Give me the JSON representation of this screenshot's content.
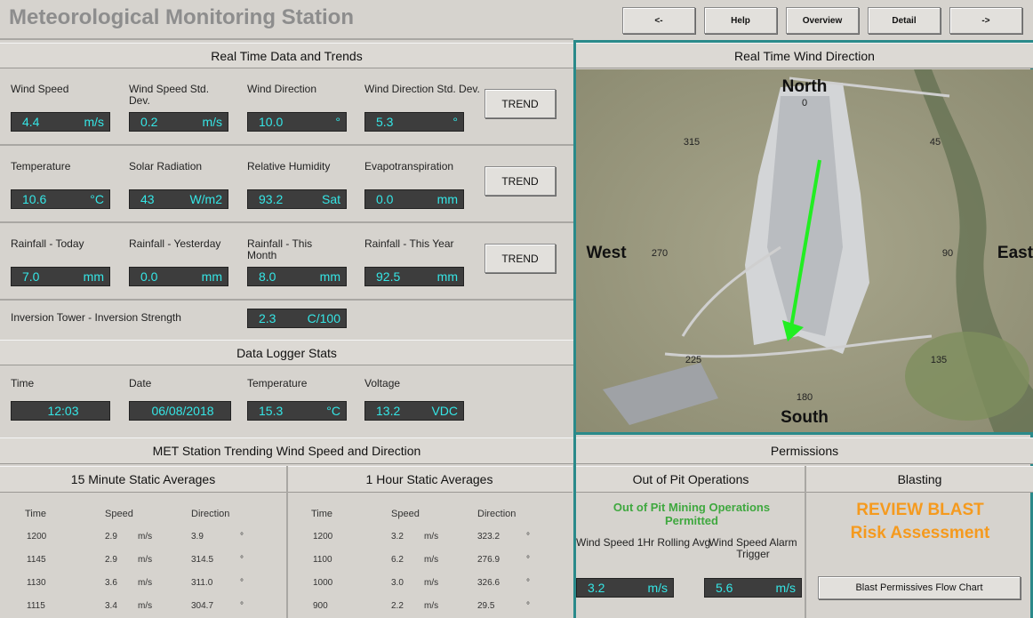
{
  "header": {
    "title": "Meteorological Monitoring Station",
    "nav": [
      "<-",
      "Help",
      "Overview",
      "Detail",
      "->"
    ]
  },
  "realtime": {
    "title": "Real Time Data and Trends",
    "trend_button": "TREND",
    "rows": [
      [
        {
          "label": "Wind Speed",
          "value": "4.4",
          "unit": "m/s"
        },
        {
          "label": "Wind Speed Std. Dev.",
          "value": "0.2",
          "unit": "m/s"
        },
        {
          "label": "Wind Direction",
          "value": "10.0",
          "unit": "°"
        },
        {
          "label": "Wind Direction Std. Dev.",
          "value": "5.3",
          "unit": "°"
        }
      ],
      [
        {
          "label": "Temperature",
          "value": "10.6",
          "unit": "°C"
        },
        {
          "label": "Solar Radiation",
          "value": "43",
          "unit": "W/m2"
        },
        {
          "label": "Relative Humidity",
          "value": "93.2",
          "unit": "Sat"
        },
        {
          "label": "Evapotranspiration",
          "value": "0.0",
          "unit": "mm"
        }
      ],
      [
        {
          "label": "Rainfall - Today",
          "value": "7.0",
          "unit": "mm"
        },
        {
          "label": "Rainfall - Yesterday",
          "value": "0.0",
          "unit": "mm"
        },
        {
          "label": "Rainfall - This Month",
          "value": "8.0",
          "unit": "mm"
        },
        {
          "label": "Rainfall - This Year",
          "value": "92.5",
          "unit": "mm"
        }
      ]
    ],
    "inversion": {
      "label": "Inversion Tower - Inversion Strength",
      "value": "2.3",
      "unit": "C/100"
    }
  },
  "logger": {
    "title": "Data Logger Stats",
    "fields": [
      {
        "label": "Time",
        "value": "12:03",
        "unit": ""
      },
      {
        "label": "Date",
        "value": "06/08/2018",
        "unit": ""
      },
      {
        "label": "Temperature",
        "value": "15.3",
        "unit": "°C"
      },
      {
        "label": "Voltage",
        "value": "13.2",
        "unit": "VDC"
      }
    ]
  },
  "trending": {
    "title": "MET Station Trending Wind Speed and Direction",
    "tables": [
      {
        "title": "15 Minute Static Averages",
        "columns": [
          "Time",
          "Speed",
          "Direction"
        ],
        "rows": [
          [
            "1200",
            "2.9",
            "m/s",
            "3.9",
            "°"
          ],
          [
            "1145",
            "2.9",
            "m/s",
            "314.5",
            "°"
          ],
          [
            "1130",
            "3.6",
            "m/s",
            "311.0",
            "°"
          ],
          [
            "1115",
            "3.4",
            "m/s",
            "304.7",
            "°"
          ]
        ]
      },
      {
        "title": "1 Hour Static Averages",
        "columns": [
          "Time",
          "Speed",
          "Direction"
        ],
        "rows": [
          [
            "1200",
            "3.2",
            "m/s",
            "323.2",
            "°"
          ],
          [
            "1100",
            "6.2",
            "m/s",
            "276.9",
            "°"
          ],
          [
            "1000",
            "3.0",
            "m/s",
            "326.6",
            "°"
          ],
          [
            "900",
            "2.2",
            "m/s",
            "29.5",
            "°"
          ]
        ]
      }
    ]
  },
  "wind_map": {
    "title": "Real Time Wind Direction",
    "cardinals": [
      "North",
      "East",
      "South",
      "West"
    ],
    "degrees": [
      "0",
      "45",
      "90",
      "135",
      "180",
      "225",
      "270",
      "315"
    ]
  },
  "permissions": {
    "title": "Permissions",
    "columns": [
      "Out of Pit Operations",
      "Blasting"
    ],
    "status": "Out of Pit Mining Operations Permitted",
    "fields": [
      {
        "label": "Wind Speed 1Hr Rolling Avg",
        "value": "3.2",
        "unit": "m/s"
      },
      {
        "label": "Wind Speed Alarm Trigger",
        "value": "5.6",
        "unit": "m/s"
      }
    ],
    "blast_status": [
      "REVIEW BLAST",
      "Risk Assessment"
    ],
    "button": "Blast Permissives Flow Chart"
  }
}
